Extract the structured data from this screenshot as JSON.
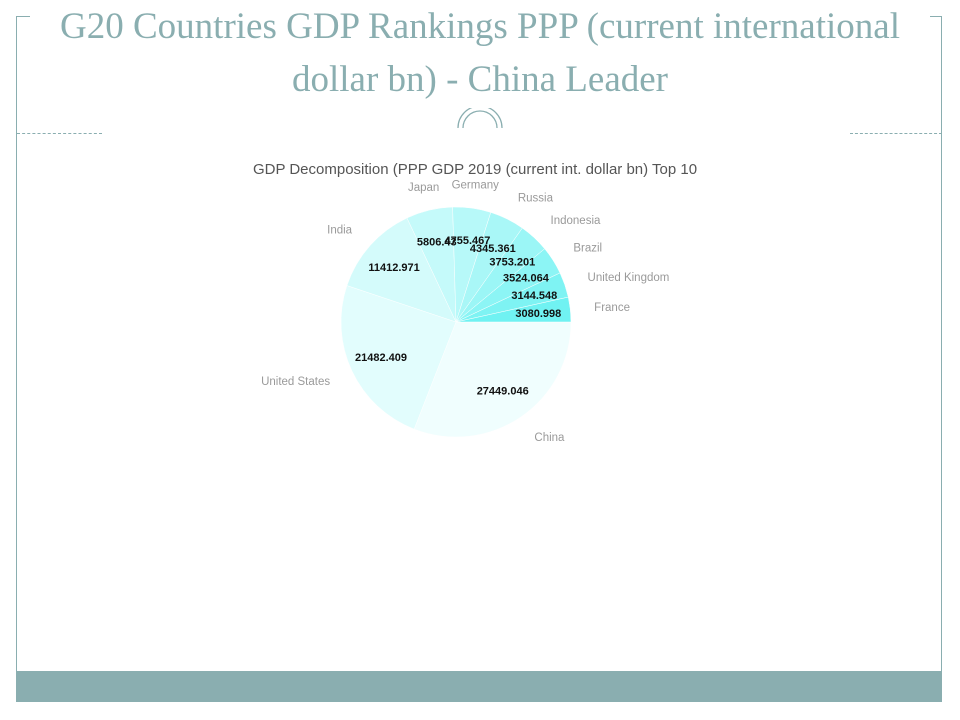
{
  "slide": {
    "title": "G20 Countries  GDP Rankings PPP (current international dollar bn) - China Leader"
  },
  "colors": {
    "frame": "#8aaeb0",
    "title": "#8aaeb0",
    "footer": "#8aaeb0",
    "slice_light": "#f0fefe",
    "slice_dark": "#70f2f2"
  },
  "chart_data": {
    "type": "pie",
    "title": "GDP Decomposition (PPP GDP 2019 (current int. dollar bn) Top 10",
    "categories": [
      "China",
      "United States",
      "India",
      "Japan",
      "Germany",
      "Russia",
      "Indonesia",
      "Brazil",
      "United Kingdom",
      "France"
    ],
    "values": [
      27449.046,
      21482.409,
      11412.971,
      5806.43,
      4755.467,
      4345.361,
      3753.201,
      3524.064,
      3144.548,
      3080.998
    ],
    "value_labels": [
      "27449.046",
      "21482.409",
      "11412.971",
      "5806.43",
      "4755.467",
      "4345.361",
      "3753.201",
      "3524.064",
      "3144.548",
      "3080.998"
    ],
    "start_angle": "3 o'clock",
    "direction": "clockwise",
    "legend": "none"
  }
}
